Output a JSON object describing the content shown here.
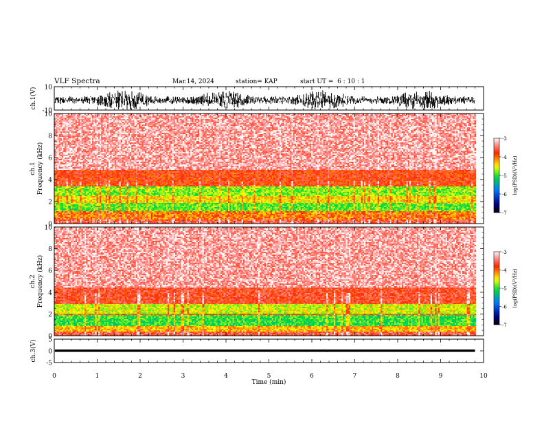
{
  "header": {
    "title": "VLF Spectra",
    "date": "Mar.14, 2024",
    "station": "station= KAP",
    "start": "start UT =  6 : 10 : 1"
  },
  "chart_data": [
    {
      "type": "line",
      "name": "ch1-waveform",
      "ylabel": "ch.1(V)",
      "ylim": [
        -10,
        10
      ],
      "yticks": [
        "10",
        "-10"
      ],
      "xlim": [
        0,
        10
      ],
      "data_end_min": 9.8,
      "amplitude_range": [
        -10,
        7
      ],
      "color": "#000000"
    },
    {
      "type": "heatmap",
      "name": "ch1-spectrogram",
      "ylabel_line1": "ch.1",
      "ylabel_line2": "Frequency (kHz)",
      "ylim": [
        0,
        10
      ],
      "yticks": [
        "0",
        "2",
        "4",
        "6",
        "8",
        "10"
      ],
      "xlim": [
        0,
        10
      ],
      "data_end_min": 9.8,
      "bands": [
        {
          "from": 0,
          "to": 0.4,
          "level": -3.6
        },
        {
          "from": 0.4,
          "to": 1.2,
          "level": -4.1
        },
        {
          "from": 1.2,
          "to": 2.0,
          "level": -4.9
        },
        {
          "from": 2.0,
          "to": 2.6,
          "level": -4.4
        },
        {
          "from": 2.6,
          "to": 3.5,
          "level": -4.8
        },
        {
          "from": 3.5,
          "to": 5.0,
          "level": -3.8
        },
        {
          "from": 5.0,
          "to": 10.0,
          "level": -3.3
        }
      ],
      "colorbar": {
        "label": "log(PSD)(V²/Hz)",
        "ticks": [
          "-3",
          "-4",
          "-5",
          "-6",
          "-7"
        ],
        "range": [
          -7,
          -3
        ]
      }
    },
    {
      "type": "heatmap",
      "name": "ch2-spectrogram",
      "ylabel_line1": "ch.2",
      "ylabel_line2": "Frequency (kHz)",
      "ylim": [
        0,
        10
      ],
      "yticks": [
        "0",
        "2",
        "4",
        "6",
        "8",
        "10"
      ],
      "xlim": [
        0,
        10
      ],
      "data_end_min": 9.8,
      "bands": [
        {
          "from": 0,
          "to": 0.4,
          "level": -3.6
        },
        {
          "from": 0.4,
          "to": 1.0,
          "level": -4.3
        },
        {
          "from": 1.0,
          "to": 1.9,
          "level": -5.0
        },
        {
          "from": 1.9,
          "to": 2.1,
          "level": -3.9
        },
        {
          "from": 2.1,
          "to": 3.0,
          "level": -4.6
        },
        {
          "from": 3.0,
          "to": 4.5,
          "level": -3.7
        },
        {
          "from": 4.5,
          "to": 10.0,
          "level": -3.3
        }
      ],
      "colorbar": {
        "label": "log(PSD)(V²/Hz)",
        "ticks": [
          "-3",
          "-4",
          "-5",
          "-6",
          "-7"
        ],
        "range": [
          -7,
          -3
        ]
      }
    },
    {
      "type": "line",
      "name": "ch3-waveform",
      "ylabel": "ch.3(V)",
      "ylim": [
        -5,
        5
      ],
      "yticks": [
        "5",
        "0",
        "-5"
      ],
      "xlim": [
        0,
        10
      ],
      "data_end_min": 9.8,
      "amplitude_range": [
        -0.5,
        0.5
      ],
      "color": "#000000"
    }
  ],
  "xaxis": {
    "label": "Time (min)",
    "ticks": [
      "0",
      "1",
      "2",
      "3",
      "4",
      "5",
      "6",
      "7",
      "8",
      "9",
      "10"
    ]
  }
}
